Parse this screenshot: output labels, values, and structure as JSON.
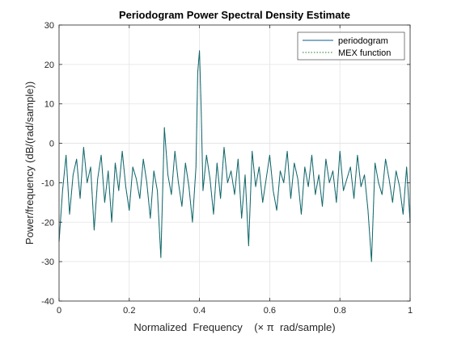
{
  "chart_data": {
    "type": "line",
    "title": "Periodogram Power Spectral Density Estimate",
    "xlabel": "Normalized  Frequency    (× π  rad/sample)",
    "ylabel": "Power/frequency (dB/(rad/sample))",
    "xlim": [
      0,
      1
    ],
    "ylim": [
      -40,
      30
    ],
    "xticks": [
      0,
      0.2,
      0.4,
      0.6,
      0.8,
      1
    ],
    "xtick_labels": [
      "0",
      "0.2",
      "0.4",
      "0.6",
      "0.8",
      "1"
    ],
    "yticks": [
      -40,
      -30,
      -20,
      -10,
      0,
      10,
      20,
      30
    ],
    "ytick_labels": [
      "-40",
      "-30",
      "-20",
      "-10",
      "0",
      "10",
      "20",
      "30"
    ],
    "grid": true,
    "legend_position": "top-right",
    "series": [
      {
        "name": "periodogram",
        "color": "#0b5e8a",
        "style": "solid",
        "x": [
          0,
          0.01,
          0.02,
          0.03,
          0.04,
          0.05,
          0.06,
          0.07,
          0.08,
          0.09,
          0.1,
          0.11,
          0.12,
          0.13,
          0.14,
          0.15,
          0.16,
          0.17,
          0.18,
          0.19,
          0.2,
          0.21,
          0.22,
          0.23,
          0.24,
          0.25,
          0.26,
          0.27,
          0.28,
          0.29,
          0.3,
          0.31,
          0.32,
          0.33,
          0.34,
          0.35,
          0.36,
          0.37,
          0.38,
          0.39,
          0.395,
          0.4,
          0.405,
          0.41,
          0.42,
          0.43,
          0.44,
          0.45,
          0.46,
          0.47,
          0.48,
          0.49,
          0.5,
          0.51,
          0.52,
          0.53,
          0.54,
          0.55,
          0.56,
          0.57,
          0.58,
          0.59,
          0.6,
          0.61,
          0.62,
          0.63,
          0.64,
          0.65,
          0.66,
          0.67,
          0.68,
          0.69,
          0.7,
          0.71,
          0.72,
          0.73,
          0.74,
          0.75,
          0.76,
          0.77,
          0.78,
          0.79,
          0.8,
          0.81,
          0.82,
          0.83,
          0.84,
          0.85,
          0.86,
          0.87,
          0.88,
          0.89,
          0.9,
          0.91,
          0.92,
          0.93,
          0.94,
          0.95,
          0.96,
          0.97,
          0.98,
          0.99,
          1.0
        ],
        "y": [
          -25,
          -12,
          -3,
          -18,
          -8,
          -4,
          -14,
          -1,
          -10,
          -6,
          -22,
          -9,
          -3,
          -15,
          -7,
          -20,
          -5,
          -12,
          -2,
          -11,
          -17,
          -6,
          -9,
          -14,
          -4,
          -10,
          -19,
          -7,
          -12,
          -29,
          4,
          -8,
          -13,
          -2,
          -10,
          -16,
          -5,
          -11,
          -20,
          -6,
          18,
          23.5,
          8,
          -12,
          -3,
          -9,
          -18,
          -5,
          -14,
          -1,
          -10,
          -7,
          -13,
          -4,
          -19,
          -8,
          -26,
          -2,
          -11,
          -6,
          -15,
          -9,
          -3,
          -12,
          -17,
          -7,
          -10,
          -2,
          -14,
          -5,
          -9,
          -18,
          -6,
          -11,
          -3,
          -13,
          -8,
          -16,
          -4,
          -10,
          -7,
          -15,
          -2,
          -12,
          -9,
          -6,
          -14,
          -3,
          -11,
          -8,
          -17,
          -30,
          -5,
          -10,
          -13,
          -4,
          -9,
          -15,
          -7,
          -11,
          -18,
          -6,
          -20
        ]
      },
      {
        "name": "MEX function",
        "color": "#1f7a1f",
        "style": "dotted"
      }
    ]
  }
}
